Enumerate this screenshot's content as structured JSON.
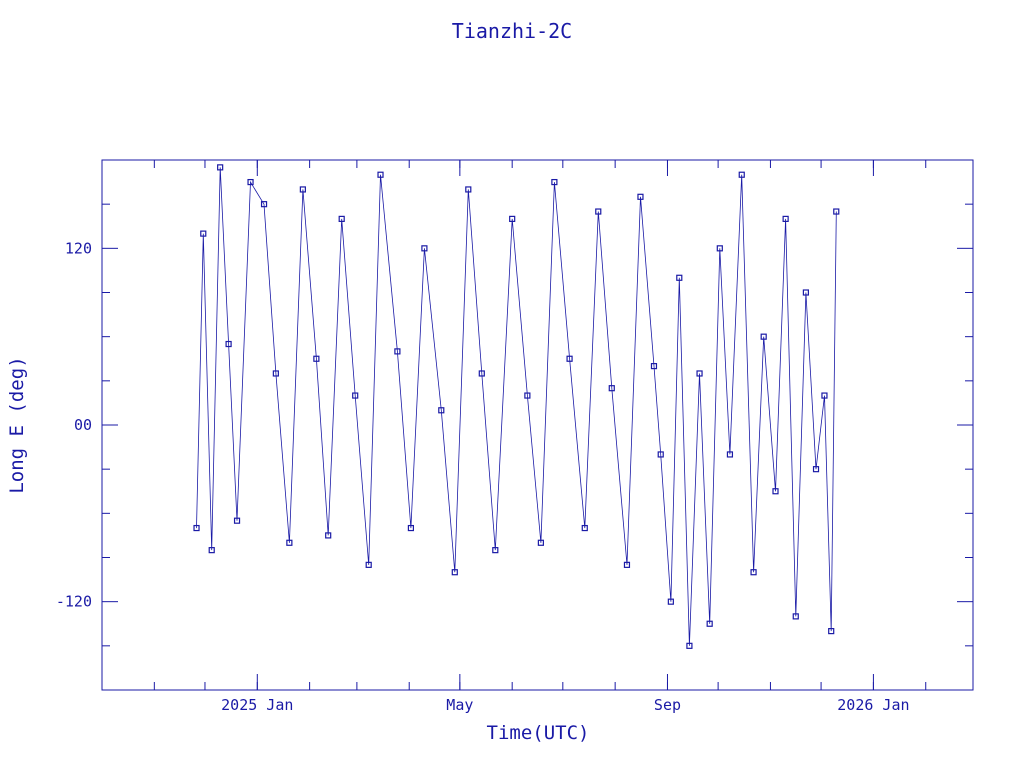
{
  "chart_data": {
    "type": "scatter",
    "title": "Tianzhi-2C",
    "xlabel": "Time(UTC)",
    "ylabel": "Long E (deg)",
    "ylim": [
      -180,
      180
    ],
    "xlim": [
      "2024-10-01",
      "2026-03-01"
    ],
    "x_ticks": [
      {
        "label": "2025 Jan",
        "date": "2025-01-01"
      },
      {
        "label": "May",
        "date": "2025-05-01"
      },
      {
        "label": "Sep",
        "date": "2025-09-01"
      },
      {
        "label": "2026 Jan",
        "date": "2026-01-01"
      }
    ],
    "y_ticks": [
      {
        "label": "-120",
        "value": -120
      },
      {
        "label": "00",
        "value": 0
      },
      {
        "label": "120",
        "value": 120
      }
    ],
    "grid": false,
    "color": "#1a1aa6",
    "series": [
      {
        "points": [
          {
            "x": "2024-11-26",
            "y": -70
          },
          {
            "x": "2024-11-30",
            "y": 130
          },
          {
            "x": "2024-12-05",
            "y": -85
          },
          {
            "x": "2024-12-10",
            "y": 175
          },
          {
            "x": "2024-12-15",
            "y": 55
          },
          {
            "x": "2024-12-20",
            "y": -65
          },
          {
            "x": "2024-12-28",
            "y": 165
          },
          {
            "x": "2025-01-05",
            "y": 150
          },
          {
            "x": "2025-01-12",
            "y": 35
          },
          {
            "x": "2025-01-20",
            "y": -80
          },
          {
            "x": "2025-01-28",
            "y": 160
          },
          {
            "x": "2025-02-05",
            "y": 45
          },
          {
            "x": "2025-02-12",
            "y": -75
          },
          {
            "x": "2025-02-20",
            "y": 140
          },
          {
            "x": "2025-02-28",
            "y": 20
          },
          {
            "x": "2025-03-08",
            "y": -95
          },
          {
            "x": "2025-03-15",
            "y": 170
          },
          {
            "x": "2025-03-25",
            "y": 50
          },
          {
            "x": "2025-04-02",
            "y": -70
          },
          {
            "x": "2025-04-10",
            "y": 120
          },
          {
            "x": "2025-04-20",
            "y": 10
          },
          {
            "x": "2025-04-28",
            "y": -100
          },
          {
            "x": "2025-05-06",
            "y": 160
          },
          {
            "x": "2025-05-14",
            "y": 35
          },
          {
            "x": "2025-05-22",
            "y": -85
          },
          {
            "x": "2025-06-01",
            "y": 140
          },
          {
            "x": "2025-06-10",
            "y": 20
          },
          {
            "x": "2025-06-18",
            "y": -80
          },
          {
            "x": "2025-06-26",
            "y": 165
          },
          {
            "x": "2025-07-05",
            "y": 45
          },
          {
            "x": "2025-07-14",
            "y": -70
          },
          {
            "x": "2025-07-22",
            "y": 145
          },
          {
            "x": "2025-07-30",
            "y": 25
          },
          {
            "x": "2025-08-08",
            "y": -95
          },
          {
            "x": "2025-08-16",
            "y": 155
          },
          {
            "x": "2025-08-24",
            "y": 40
          },
          {
            "x": "2025-08-28",
            "y": -20
          },
          {
            "x": "2025-09-03",
            "y": -120
          },
          {
            "x": "2025-09-08",
            "y": 100
          },
          {
            "x": "2025-09-14",
            "y": -150
          },
          {
            "x": "2025-09-20",
            "y": 35
          },
          {
            "x": "2025-09-26",
            "y": -135
          },
          {
            "x": "2025-10-02",
            "y": 120
          },
          {
            "x": "2025-10-08",
            "y": -20
          },
          {
            "x": "2025-10-15",
            "y": 170
          },
          {
            "x": "2025-10-22",
            "y": -100
          },
          {
            "x": "2025-10-28",
            "y": 60
          },
          {
            "x": "2025-11-04",
            "y": -45
          },
          {
            "x": "2025-11-10",
            "y": 140
          },
          {
            "x": "2025-11-16",
            "y": -130
          },
          {
            "x": "2025-11-22",
            "y": 90
          },
          {
            "x": "2025-11-28",
            "y": -30
          },
          {
            "x": "2025-12-03",
            "y": 20
          },
          {
            "x": "2025-12-07",
            "y": -140
          },
          {
            "x": "2025-12-10",
            "y": 145
          }
        ]
      }
    ]
  }
}
